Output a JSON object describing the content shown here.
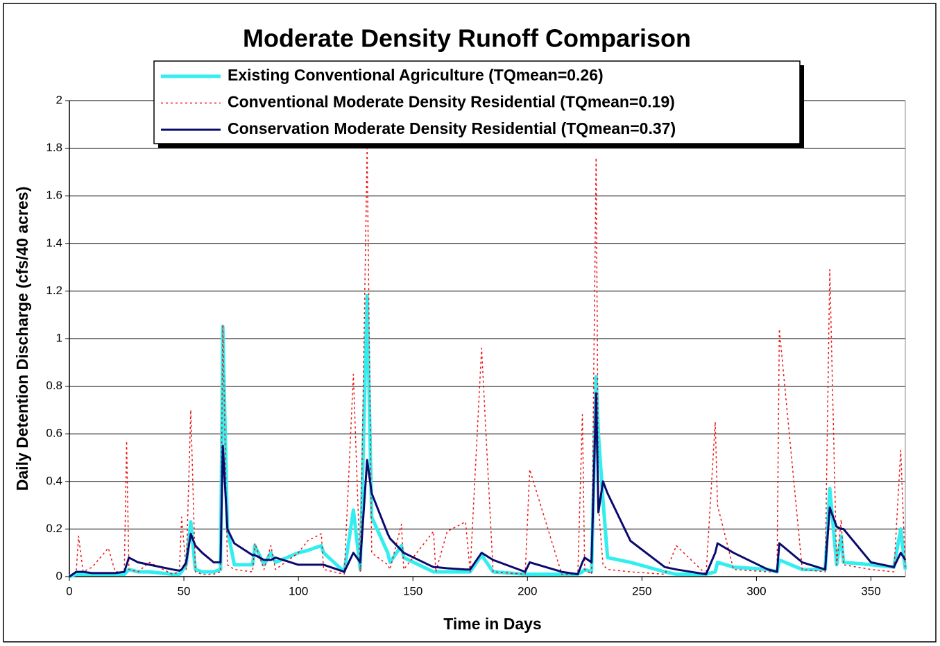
{
  "chart_data": {
    "type": "line",
    "title": "Moderate Density Runoff Comparison",
    "xlabel": "Time in Days",
    "ylabel": "Daily Detention Discharge (cfs/40 acres)",
    "x": [
      0,
      3,
      4,
      6,
      10,
      17,
      20,
      24,
      25,
      26,
      30,
      35,
      45,
      48,
      49,
      51,
      53,
      55,
      58,
      63,
      66,
      67,
      69,
      72,
      80,
      81,
      85,
      88,
      90,
      100,
      104,
      110,
      111,
      120,
      124,
      127,
      130,
      132,
      139,
      140,
      145,
      146,
      159,
      160,
      165,
      173,
      175,
      180,
      185,
      199,
      201,
      215,
      222,
      224,
      225,
      228,
      230,
      231,
      233,
      235,
      245,
      260,
      265,
      278,
      282,
      283,
      290,
      305,
      309,
      310,
      320,
      330,
      332,
      335,
      337,
      338,
      350,
      360,
      363,
      365
    ],
    "series": [
      {
        "name": "Existing Conventional Agriculture (TQmean=0.26)",
        "color": "#33eeee",
        "linestyle": "solid",
        "width": 5,
        "values": [
          0,
          0.01,
          0.01,
          0.01,
          0.01,
          0.01,
          0.01,
          0.01,
          0.02,
          0.03,
          0.02,
          0.02,
          0.01,
          0.01,
          0.02,
          0.05,
          0.23,
          0.03,
          0.02,
          0.02,
          0.03,
          1.05,
          0.2,
          0.05,
          0.05,
          0.13,
          0.05,
          0.1,
          0.06,
          0.1,
          0.11,
          0.13,
          0.1,
          0.02,
          0.28,
          0.03,
          1.18,
          0.25,
          0.1,
          0.06,
          0.13,
          0.08,
          0.02,
          0.02,
          0.02,
          0.02,
          0.02,
          0.09,
          0.02,
          0.01,
          0.01,
          0.01,
          0.01,
          0.02,
          0.03,
          0.02,
          0.84,
          0.6,
          0.32,
          0.08,
          0.06,
          0.02,
          0.01,
          0.01,
          0.02,
          0.06,
          0.04,
          0.03,
          0.02,
          0.07,
          0.03,
          0.03,
          0.37,
          0.05,
          0.17,
          0.06,
          0.05,
          0.04,
          0.2,
          0.03
        ]
      },
      {
        "name": "Conventional Moderate Density Residential (TQmean=0.19)",
        "color": "#ee1111",
        "linestyle": "dotted",
        "width": 1.5,
        "values": [
          0,
          0.02,
          0.17,
          0.02,
          0.04,
          0.12,
          0.02,
          0.02,
          0.57,
          0.03,
          0.02,
          0.06,
          0.01,
          0.02,
          0.25,
          0.03,
          0.7,
          0.02,
          0.01,
          0.01,
          0.02,
          1.06,
          0.05,
          0.03,
          0.02,
          0.14,
          0.03,
          0.13,
          0.03,
          0.1,
          0.15,
          0.18,
          0.03,
          0.01,
          0.85,
          0.02,
          1.8,
          0.1,
          0.05,
          0.03,
          0.22,
          0.03,
          0.19,
          0.02,
          0.19,
          0.23,
          0.02,
          0.96,
          0.02,
          0.01,
          0.45,
          0.01,
          0.01,
          0.68,
          0.03,
          0.01,
          1.76,
          0.3,
          0.05,
          0.03,
          0.02,
          0.01,
          0.13,
          0.01,
          0.65,
          0.3,
          0.03,
          0.02,
          0.02,
          1.04,
          0.03,
          0.02,
          1.29,
          0.05,
          0.24,
          0.05,
          0.03,
          0.02,
          0.53,
          0.03
        ]
      },
      {
        "name": "Conservation Moderate Density Residential (TQmean=0.37)",
        "color": "#0a0a6e",
        "linestyle": "solid",
        "width": 3,
        "values": [
          0,
          0.02,
          0.02,
          0.02,
          0.015,
          0.015,
          0.015,
          0.02,
          0.05,
          0.08,
          0.06,
          0.05,
          0.03,
          0.025,
          0.03,
          0.06,
          0.18,
          0.13,
          0.1,
          0.06,
          0.06,
          0.55,
          0.2,
          0.14,
          0.09,
          0.09,
          0.07,
          0.07,
          0.08,
          0.05,
          0.05,
          0.05,
          0.05,
          0.02,
          0.1,
          0.06,
          0.49,
          0.35,
          0.18,
          0.16,
          0.11,
          0.1,
          0.04,
          0.04,
          0.035,
          0.03,
          0.03,
          0.1,
          0.07,
          0.02,
          0.06,
          0.02,
          0.01,
          0.06,
          0.08,
          0.06,
          0.77,
          0.27,
          0.4,
          0.35,
          0.15,
          0.04,
          0.03,
          0.01,
          0.1,
          0.14,
          0.1,
          0.03,
          0.02,
          0.14,
          0.06,
          0.03,
          0.29,
          0.21,
          0.2,
          0.2,
          0.06,
          0.04,
          0.1,
          0.07
        ]
      }
    ],
    "xlim": [
      0,
      365
    ],
    "xticks": [
      0,
      50,
      100,
      150,
      200,
      250,
      300,
      350
    ],
    "ylim": [
      0,
      2
    ],
    "yticks": [
      0,
      0.2,
      0.4,
      0.6,
      0.8,
      1,
      1.2,
      1.4,
      1.6,
      1.8,
      2
    ],
    "grid": true
  }
}
